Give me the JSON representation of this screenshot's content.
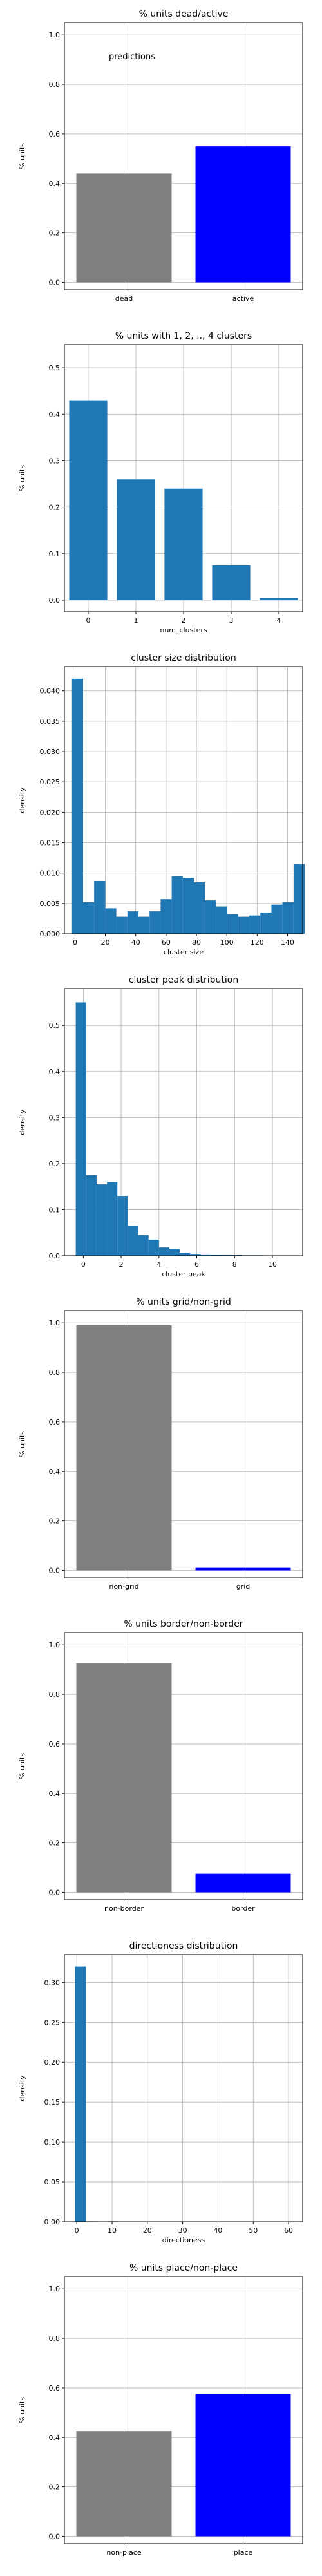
{
  "chart_data": [
    {
      "type": "bar",
      "title": "% units dead/active",
      "ylabel": "% units",
      "xlabel": "",
      "annotation": "predictions",
      "categories": [
        "dead",
        "active"
      ],
      "values": [
        0.44,
        0.55
      ],
      "colors": [
        "#808080",
        "#0000ff"
      ],
      "ylim": [
        -0.03,
        1.05
      ],
      "yticks": [
        "0.0",
        "0.2",
        "0.4",
        "0.6",
        "0.8",
        "1.0"
      ],
      "grid": true
    },
    {
      "type": "bar",
      "title": "% units with 1, 2, .., 4 clusters",
      "ylabel": "% units",
      "xlabel": "num_clusters",
      "categories": [
        "0",
        "1",
        "2",
        "3",
        "4"
      ],
      "values": [
        0.43,
        0.26,
        0.24,
        0.075,
        0.005
      ],
      "colors": [
        "#1f77b4"
      ],
      "ylim": [
        -0.025,
        0.55
      ],
      "yticks": [
        "0.0",
        "0.1",
        "0.2",
        "0.3",
        "0.4",
        "0.5"
      ],
      "grid": true
    },
    {
      "type": "bar",
      "title": "cluster size distribution",
      "ylabel": "density",
      "xlabel": "cluster size",
      "histogram": true,
      "bin_start": -2,
      "bin_width": 7.3,
      "values": [
        0.042,
        0.0052,
        0.0087,
        0.0042,
        0.0028,
        0.0037,
        0.0028,
        0.0037,
        0.0057,
        0.0095,
        0.0092,
        0.0085,
        0.0055,
        0.0045,
        0.0032,
        0.0028,
        0.003,
        0.0035,
        0.0048,
        0.0052,
        0.0115
      ],
      "colors": [
        "#1f77b4"
      ],
      "xlim": [
        -7,
        150
      ],
      "xticks": [
        "0",
        "20",
        "40",
        "60",
        "80",
        "100",
        "120",
        "140"
      ],
      "ylim": [
        0,
        0.044
      ],
      "yticks": [
        "0.000",
        "0.005",
        "0.010",
        "0.015",
        "0.020",
        "0.025",
        "0.030",
        "0.035",
        "0.040"
      ],
      "grid": true
    },
    {
      "type": "bar",
      "title": "cluster peak distribution",
      "ylabel": "density",
      "xlabel": "cluster peak",
      "histogram": true,
      "bin_start": -0.4,
      "bin_width": 0.55,
      "values": [
        0.55,
        0.175,
        0.155,
        0.16,
        0.13,
        0.065,
        0.045,
        0.035,
        0.018,
        0.015,
        0.007,
        0.004,
        0.003,
        0.0025,
        0.002,
        0.0015,
        0.001,
        0.001,
        0.0005,
        0.0005,
        0.0005
      ],
      "colors": [
        "#1f77b4"
      ],
      "xlim": [
        -1,
        11.6
      ],
      "xticks": [
        "0",
        "2",
        "4",
        "6",
        "8",
        "10"
      ],
      "ylim": [
        0,
        0.58
      ],
      "yticks": [
        "0.0",
        "0.1",
        "0.2",
        "0.3",
        "0.4",
        "0.5"
      ],
      "grid": true
    },
    {
      "type": "bar",
      "title": "% units grid/non-grid",
      "ylabel": "% units",
      "xlabel": "",
      "categories": [
        "non-grid",
        "grid"
      ],
      "values": [
        0.99,
        0.01
      ],
      "colors": [
        "#808080",
        "#0000ff"
      ],
      "ylim": [
        -0.03,
        1.05
      ],
      "yticks": [
        "0.0",
        "0.2",
        "0.4",
        "0.6",
        "0.8",
        "1.0"
      ],
      "grid": true
    },
    {
      "type": "bar",
      "title": "% units border/non-border",
      "ylabel": "% units",
      "xlabel": "",
      "categories": [
        "non-border",
        "border"
      ],
      "values": [
        0.925,
        0.075
      ],
      "colors": [
        "#808080",
        "#0000ff"
      ],
      "ylim": [
        -0.03,
        1.05
      ],
      "yticks": [
        "0.0",
        "0.2",
        "0.4",
        "0.6",
        "0.8",
        "1.0"
      ],
      "grid": true
    },
    {
      "type": "bar",
      "title": "directioness distribution",
      "ylabel": "density",
      "xlabel": "directioness",
      "histogram": true,
      "bin_start": -0.5,
      "bin_width": 3.1,
      "values": [
        0.32,
        0.0005,
        0,
        0.0005,
        0,
        0.0003,
        0,
        0,
        0,
        0,
        0,
        0,
        0,
        0,
        0,
        0,
        0,
        0,
        0,
        0.0002
      ],
      "colors": [
        "#1f77b4"
      ],
      "xlim": [
        -3.5,
        64
      ],
      "xticks": [
        "0",
        "10",
        "20",
        "30",
        "40",
        "50",
        "60"
      ],
      "ylim": [
        0,
        0.335
      ],
      "yticks": [
        "0.00",
        "0.05",
        "0.10",
        "0.15",
        "0.20",
        "0.25",
        "0.30"
      ],
      "grid": true
    },
    {
      "type": "bar",
      "title": "% units place/non-place",
      "ylabel": "% units",
      "xlabel": "",
      "categories": [
        "non-place",
        "place"
      ],
      "values": [
        0.425,
        0.575
      ],
      "colors": [
        "#808080",
        "#0000ff"
      ],
      "ylim": [
        -0.03,
        1.05
      ],
      "yticks": [
        "0.0",
        "0.2",
        "0.4",
        "0.6",
        "0.8",
        "1.0"
      ],
      "grid": true
    }
  ]
}
